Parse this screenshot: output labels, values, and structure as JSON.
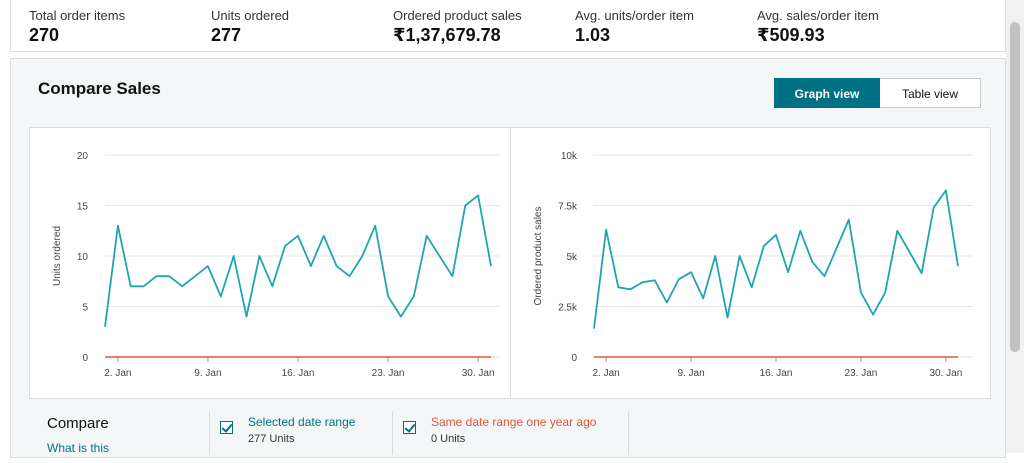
{
  "metrics": [
    {
      "label": "Total order items",
      "value": "270"
    },
    {
      "label": "Units ordered",
      "value": "277"
    },
    {
      "label": "Ordered product sales",
      "value": "₹1,37,679.78"
    },
    {
      "label": "Avg. units/order item",
      "value": "1.03"
    },
    {
      "label": "Avg. sales/order item",
      "value": "₹509.93"
    }
  ],
  "compare_sales": {
    "title": "Compare Sales",
    "view_toggle": {
      "graph": "Graph view",
      "table": "Table view",
      "selected": "graph"
    }
  },
  "colors": {
    "current_series": "#1ea5b5",
    "last_year_series": "#e0563b",
    "accent": "#007185"
  },
  "chart_data": [
    {
      "type": "line",
      "title": "",
      "xlabel": "",
      "ylabel": "Units ordered",
      "ylim": [
        0,
        20
      ],
      "yticks": [
        "0",
        "5",
        "10",
        "15",
        "20"
      ],
      "x_ticks": [
        "2. Jan",
        "9. Jan",
        "16. Jan",
        "23. Jan",
        "30. Jan"
      ],
      "x": [
        1,
        2,
        3,
        4,
        5,
        6,
        7,
        8,
        9,
        10,
        11,
        12,
        13,
        14,
        15,
        16,
        17,
        18,
        19,
        20,
        21,
        22,
        23,
        24,
        25,
        26,
        27,
        28,
        29,
        30,
        31
      ],
      "series": [
        {
          "name": "Selected date range",
          "values": [
            3,
            13,
            7,
            7,
            8,
            8,
            7,
            8,
            9,
            6,
            10,
            4,
            10,
            7,
            11,
            12,
            9,
            12,
            9,
            8,
            10,
            13,
            6,
            4,
            6,
            12,
            10,
            8,
            15,
            16,
            9
          ]
        },
        {
          "name": "Same date range one year ago",
          "values": [
            0,
            0,
            0,
            0,
            0,
            0,
            0,
            0,
            0,
            0,
            0,
            0,
            0,
            0,
            0,
            0,
            0,
            0,
            0,
            0,
            0,
            0,
            0,
            0,
            0,
            0,
            0,
            0,
            0,
            0,
            0
          ]
        }
      ],
      "grid": true
    },
    {
      "type": "line",
      "title": "",
      "xlabel": "",
      "ylabel": "Ordered product sales",
      "ylim": [
        0,
        10000
      ],
      "yticks": [
        "0",
        "2.5k",
        "5k",
        "7.5k",
        "10k"
      ],
      "x_ticks": [
        "2. Jan",
        "9. Jan",
        "16. Jan",
        "23. Jan",
        "30. Jan"
      ],
      "x": [
        1,
        2,
        3,
        4,
        5,
        6,
        7,
        8,
        9,
        10,
        11,
        12,
        13,
        14,
        15,
        16,
        17,
        18,
        19,
        20,
        21,
        22,
        23,
        24,
        25,
        26,
        27,
        28,
        29,
        30,
        31
      ],
      "series": [
        {
          "name": "Selected date range",
          "values": [
            1400,
            6300,
            3450,
            3350,
            3700,
            3800,
            2700,
            3850,
            4200,
            2900,
            5000,
            1950,
            5000,
            3450,
            5500,
            6050,
            4200,
            6250,
            4700,
            4000,
            5400,
            6800,
            3200,
            2100,
            3200,
            6250,
            5200,
            4150,
            7400,
            8250,
            4500
          ]
        },
        {
          "name": "Same date range one year ago",
          "values": [
            0,
            0,
            0,
            0,
            0,
            0,
            0,
            0,
            0,
            0,
            0,
            0,
            0,
            0,
            0,
            0,
            0,
            0,
            0,
            0,
            0,
            0,
            0,
            0,
            0,
            0,
            0,
            0,
            0,
            0,
            0
          ]
        }
      ],
      "grid": true
    }
  ],
  "legend": {
    "compare_label": "Compare",
    "what_link": "What is this",
    "items": [
      {
        "name": "Selected date range",
        "sub": "277 Units",
        "checked": true
      },
      {
        "name": "Same date range one year ago",
        "sub": "0 Units",
        "checked": true
      }
    ]
  }
}
